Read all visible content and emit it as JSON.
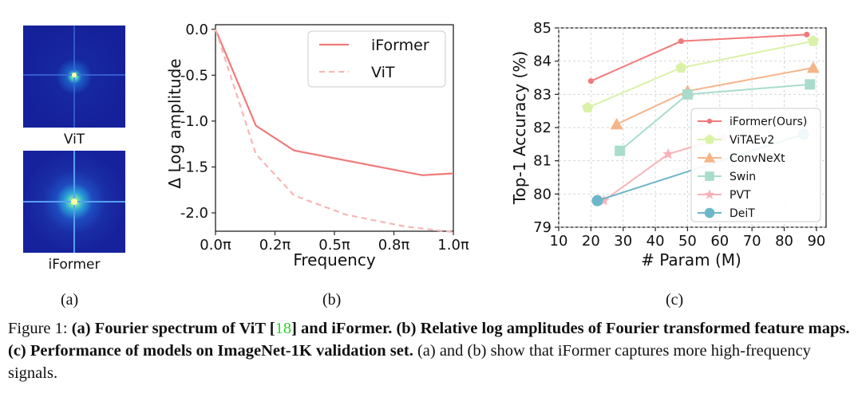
{
  "panel_a": {
    "top_image_label": "ViT",
    "bottom_image_label": "iFormer",
    "sublabel": "(a)"
  },
  "panel_b": {
    "sublabel": "(b)"
  },
  "panel_c": {
    "sublabel": "(c)"
  },
  "caption": {
    "figure_label": "Figure 1:",
    "bold_a_prefix": "(a) Fourier spectrum of ViT [",
    "citation": "18",
    "bold_a_suffix": "] and iFormer.",
    "bold_b": "(b) Relative log amplitudes of Fourier transformed feature maps.",
    "bold_c": "(c) Performance of models on ImageNet-1K validation set.",
    "plain_tail": "(a) and (b) show that iFormer captures more high-frequency signals."
  },
  "colors": {
    "iformer": "#f07a7a",
    "vit_dashed": "#f7b6b6",
    "vitaev2": "#d9f2a8",
    "convnext": "#f5b58a",
    "swin": "#a9dccc",
    "pvt": "#f8b3b8",
    "deit": "#6bb6c9"
  },
  "chart_data": [
    {
      "type": "line",
      "xlabel": "Frequency",
      "ylabel": "Δ Log amplitude",
      "xticks": [
        "0.0π",
        "0.2π",
        "0.5π",
        "0.8π",
        "1.0π"
      ],
      "yticks": [
        "0.0",
        "-0.5",
        "-1.0",
        "-1.5",
        "-2.0"
      ],
      "xlim": [
        0,
        1.0
      ],
      "ylim": [
        -2.2,
        0.05
      ],
      "legend_position": "top-right",
      "series": [
        {
          "name": "iFormer",
          "style": "solid",
          "x": [
            0,
            0.17,
            0.33,
            0.87,
            1.0
          ],
          "y": [
            0,
            -1.05,
            -1.32,
            -1.59,
            -1.57
          ]
        },
        {
          "name": "ViT",
          "style": "dashed",
          "x": [
            0,
            0.17,
            0.33,
            0.55,
            0.8,
            1.0
          ],
          "y": [
            0,
            -1.36,
            -1.81,
            -2.02,
            -2.15,
            -2.21
          ]
        }
      ]
    },
    {
      "type": "line",
      "xlabel": "# Param (M)",
      "ylabel": "Top-1 Accuracy (%)",
      "xticks": [
        "10",
        "20",
        "30",
        "40",
        "50",
        "60",
        "70",
        "80",
        "90"
      ],
      "yticks": [
        "79",
        "80",
        "81",
        "82",
        "83",
        "84",
        "85"
      ],
      "xlim": [
        10,
        93
      ],
      "ylim": [
        79,
        85
      ],
      "legend_position": "lower-right",
      "grid": true,
      "series": [
        {
          "name": "iFormer(Ours)",
          "marker": "circle",
          "x": [
            20,
            48,
            87
          ],
          "y": [
            83.4,
            84.6,
            84.8
          ]
        },
        {
          "name": "ViTAEv2",
          "marker": "pentagon",
          "x": [
            19,
            48,
            89
          ],
          "y": [
            82.6,
            83.8,
            84.6
          ]
        },
        {
          "name": "ConvNeXt",
          "marker": "triangle",
          "x": [
            28,
            50,
            89
          ],
          "y": [
            82.1,
            83.1,
            83.8
          ]
        },
        {
          "name": "Swin",
          "marker": "square",
          "x": [
            29,
            50,
            88
          ],
          "y": [
            81.3,
            83.0,
            83.3
          ]
        },
        {
          "name": "PVT",
          "marker": "star",
          "x": [
            24,
            44,
            61
          ],
          "y": [
            79.8,
            81.2,
            81.7
          ]
        },
        {
          "name": "DeiT",
          "marker": "big-circle",
          "x": [
            22,
            86
          ],
          "y": [
            79.8,
            81.8
          ]
        }
      ]
    }
  ]
}
